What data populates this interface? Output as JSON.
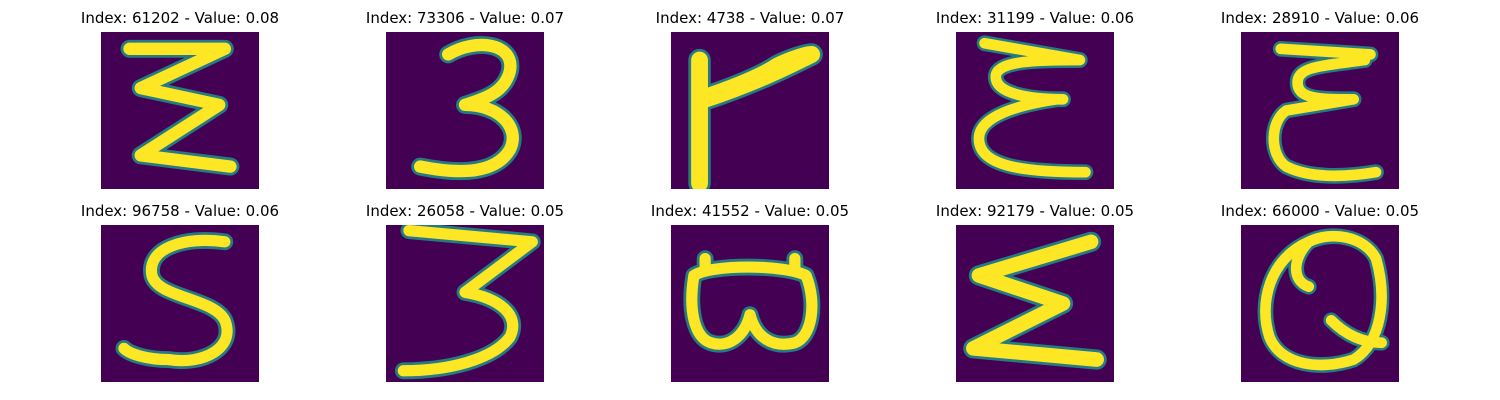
{
  "grid": {
    "rows": 2,
    "cols": 5,
    "image_bg_color": "#440154",
    "stroke_color": "#fde725",
    "edge_color": "#21918c",
    "samples": [
      {
        "title": "Index: 61202 - Value: 0.08",
        "glyph": "zigzag"
      },
      {
        "title": "Index: 73306 - Value: 0.07",
        "glyph": "three"
      },
      {
        "title": "Index: 4738 - Value: 0.07",
        "glyph": "flag"
      },
      {
        "title": "Index: 31199 - Value: 0.06",
        "glyph": "e-shape"
      },
      {
        "title": "Index: 28910 - Value: 0.06",
        "glyph": "e-shape"
      },
      {
        "title": "Index: 96758 - Value: 0.06",
        "glyph": "five"
      },
      {
        "title": "Index: 26058 - Value: 0.05",
        "glyph": "three-flat"
      },
      {
        "title": "Index: 41552 - Value: 0.05",
        "glyph": "b-sideways"
      },
      {
        "title": "Index: 92179 - Value: 0.05",
        "glyph": "sigma"
      },
      {
        "title": "Index: 66000 - Value: 0.05",
        "glyph": "q"
      }
    ]
  }
}
